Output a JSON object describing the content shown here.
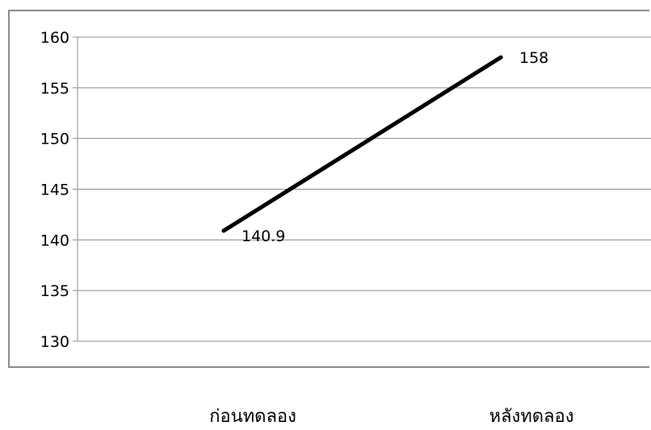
{
  "chart_data": {
    "type": "line",
    "title": "",
    "xlabel": "",
    "ylabel": "",
    "categories": [
      "ก่อนทดลอง",
      "หลังทดลอง"
    ],
    "series": [
      {
        "values": [
          140.9,
          158
        ],
        "data_labels": [
          "140.9",
          "158"
        ],
        "color": "#000000"
      }
    ],
    "ylim": [
      130,
      160
    ],
    "yticks": [
      130,
      135,
      140,
      145,
      150,
      155,
      160
    ],
    "grid": true,
    "legend": "none"
  }
}
